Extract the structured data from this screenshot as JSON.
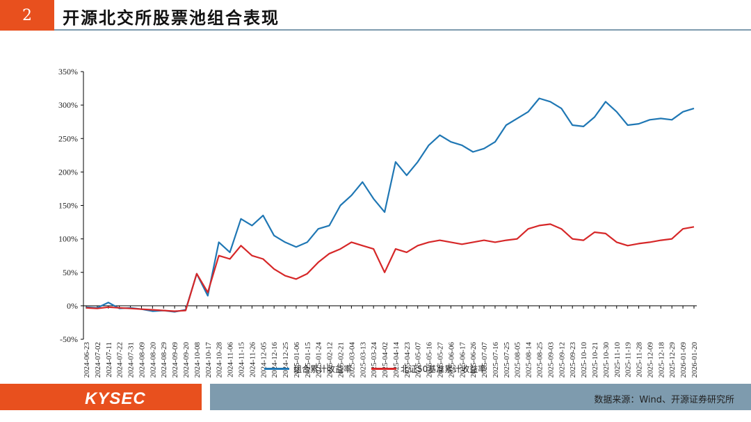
{
  "header": {
    "section_number": "2",
    "title": "开源北交所股票池组合表现"
  },
  "footer": {
    "logo_text": "KYSEC",
    "source": "数据来源：Wind、开源证券研究所"
  },
  "colors": {
    "series_1": "#1F77B4",
    "series_2": "#D62728",
    "accent": "#E8501E",
    "band": "#7E9BAE"
  },
  "chart_data": {
    "type": "line",
    "title": "",
    "xlabel": "",
    "ylabel": "",
    "ylim": [
      -50,
      350
    ],
    "yticks": [
      "-50%",
      "0%",
      "50%",
      "100%",
      "150%",
      "200%",
      "250%",
      "300%",
      "350%"
    ],
    "ytick_values": [
      -50,
      0,
      50,
      100,
      150,
      200,
      250,
      300,
      350
    ],
    "grid": false,
    "legend_position": "bottom",
    "x": [
      "2024-06-23",
      "2024-07-02",
      "2024-07-11",
      "2024-07-22",
      "2024-07-31",
      "2024-08-09",
      "2024-08-20",
      "2024-08-29",
      "2024-09-09",
      "2024-09-20",
      "2024-10-08",
      "2024-10-17",
      "2024-10-28",
      "2024-11-06",
      "2024-11-15",
      "2024-11-26",
      "2024-12-05",
      "2024-12-16",
      "2024-12-25",
      "2025-01-06",
      "2025-01-15",
      "2025-01-24",
      "2025-02-12",
      "2025-02-21",
      "2025-03-04",
      "2025-03-13",
      "2025-03-24",
      "2025-04-02",
      "2025-04-14",
      "2025-04-23",
      "2025-05-07",
      "2025-05-16",
      "2025-05-27",
      "2025-06-06",
      "2025-06-17",
      "2025-06-26",
      "2025-07-07",
      "2025-07-16",
      "2025-07-25",
      "2025-08-05",
      "2025-08-14",
      "2025-08-25",
      "2025-09-03",
      "2025-09-12",
      "2025-09-23",
      "2025-10-10",
      "2025-10-21",
      "2025-10-30",
      "2025-11-10",
      "2025-11-19",
      "2025-11-28",
      "2025-12-09",
      "2025-12-18",
      "2025-12-29",
      "2026-01-09",
      "2026-01-20"
    ],
    "series": [
      {
        "name": "组合累计收益率",
        "values": [
          -2,
          -3,
          5,
          -4,
          -3,
          -5,
          -8,
          -7,
          -9,
          -6,
          48,
          15,
          95,
          80,
          130,
          120,
          135,
          105,
          95,
          88,
          95,
          115,
          120,
          150,
          165,
          185,
          160,
          140,
          215,
          195,
          215,
          240,
          255,
          245,
          240,
          230,
          235,
          245,
          270,
          280,
          290,
          310,
          305,
          295,
          270,
          268,
          282,
          305,
          290,
          270,
          272,
          278,
          280,
          278,
          290,
          295
        ]
      },
      {
        "name": "北证50基准累计收益率",
        "values": [
          -3,
          -4,
          -2,
          -3,
          -4,
          -5,
          -6,
          -7,
          -8,
          -7,
          48,
          20,
          75,
          70,
          90,
          75,
          70,
          55,
          45,
          40,
          48,
          65,
          78,
          85,
          95,
          90,
          85,
          50,
          85,
          80,
          90,
          95,
          98,
          95,
          92,
          95,
          98,
          95,
          98,
          100,
          115,
          120,
          122,
          115,
          100,
          98,
          110,
          108,
          95,
          90,
          93,
          95,
          98,
          100,
          115,
          118
        ]
      }
    ]
  }
}
